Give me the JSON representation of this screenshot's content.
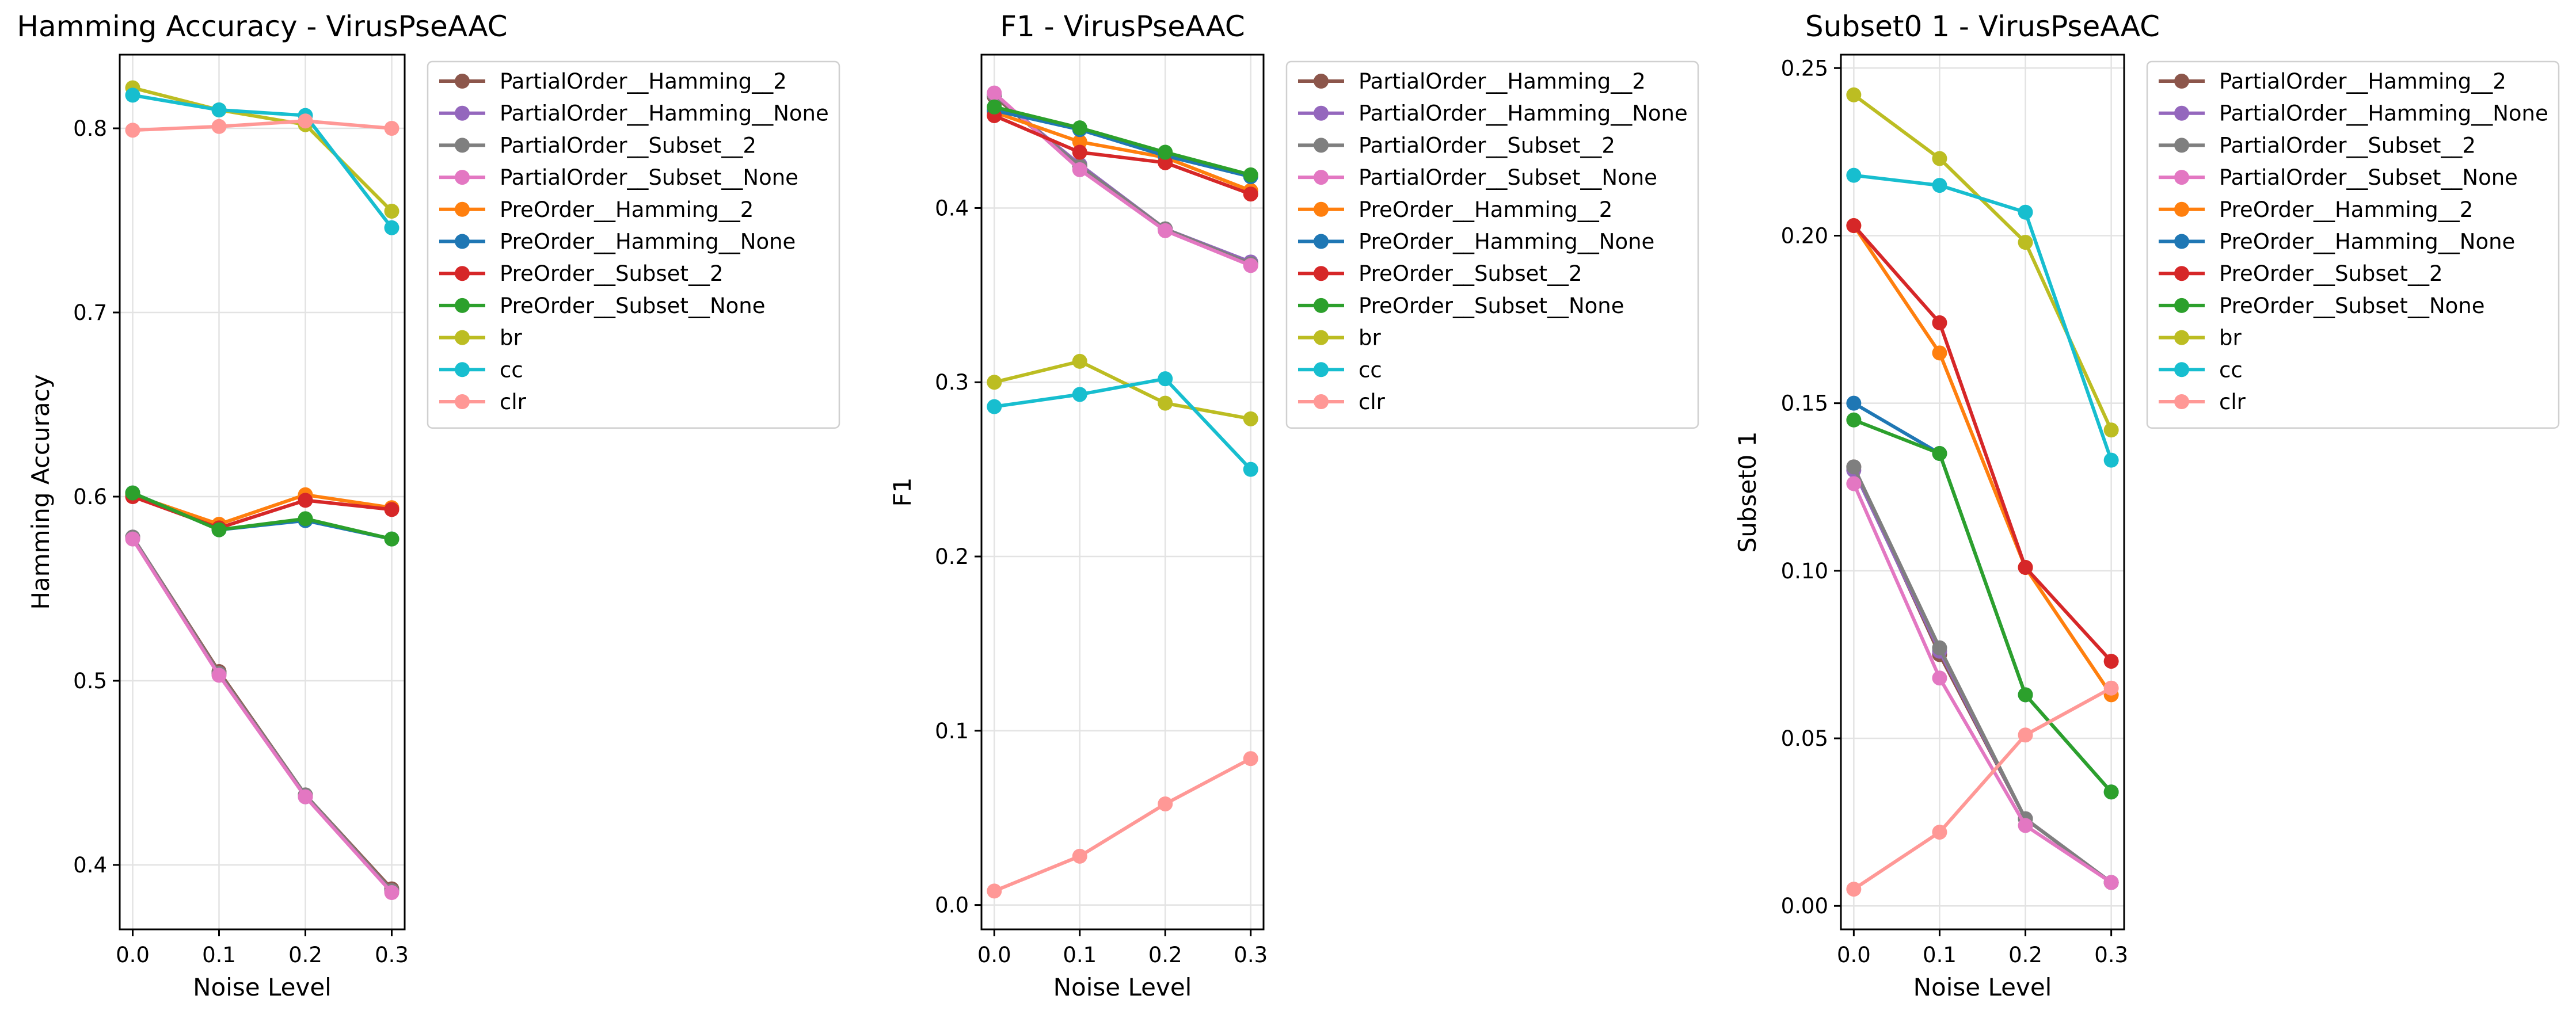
{
  "figure": {
    "x_label": "Noise Level",
    "x_ticks": [
      "0.0",
      "0.1",
      "0.2",
      "0.3"
    ]
  },
  "series_styles": [
    {
      "name": "PartialOrder__Hamming__2",
      "color": "#8c564b"
    },
    {
      "name": "PartialOrder__Hamming__None",
      "color": "#9467bd"
    },
    {
      "name": "PartialOrder__Subset__2",
      "color": "#7f7f7f"
    },
    {
      "name": "PartialOrder__Subset__None",
      "color": "#e377c2"
    },
    {
      "name": "PreOrder__Hamming__2",
      "color": "#ff7f0e"
    },
    {
      "name": "PreOrder__Hamming__None",
      "color": "#1f77b4"
    },
    {
      "name": "PreOrder__Subset__2",
      "color": "#d62728"
    },
    {
      "name": "PreOrder__Subset__None",
      "color": "#2ca02c"
    },
    {
      "name": "br",
      "color": "#bcbd22"
    },
    {
      "name": "cc",
      "color": "#17becf"
    },
    {
      "name": "clr",
      "color": "#ff9896"
    }
  ],
  "chart_data": [
    {
      "type": "line",
      "title": "Hamming Accuracy - VirusPseAAC",
      "xlabel": "Noise Level",
      "ylabel": "Hamming Accuracy",
      "x": [
        0.0,
        0.1,
        0.2,
        0.3
      ],
      "xlim": [
        -0.015,
        0.315
      ],
      "ylim": [
        0.365,
        0.84
      ],
      "yticks": [
        0.4,
        0.5,
        0.6,
        0.7,
        0.8
      ],
      "ytick_labels": [
        "0.4",
        "0.5",
        "0.6",
        "0.7",
        "0.8"
      ],
      "grid": true,
      "legend": "outside-right",
      "series": [
        {
          "name": "PartialOrder__Hamming__2",
          "values": [
            0.578,
            0.505,
            0.438,
            0.387
          ]
        },
        {
          "name": "PartialOrder__Hamming__None",
          "values": [
            0.578,
            0.504,
            0.437,
            0.386
          ]
        },
        {
          "name": "PartialOrder__Subset__2",
          "values": [
            0.578,
            0.504,
            0.438,
            0.386
          ]
        },
        {
          "name": "PartialOrder__Subset__None",
          "values": [
            0.577,
            0.503,
            0.437,
            0.385
          ]
        },
        {
          "name": "PreOrder__Hamming__2",
          "values": [
            0.601,
            0.585,
            0.601,
            0.594
          ]
        },
        {
          "name": "PreOrder__Hamming__None",
          "values": [
            0.602,
            0.582,
            0.587,
            0.577
          ]
        },
        {
          "name": "PreOrder__Subset__2",
          "values": [
            0.6,
            0.583,
            0.598,
            0.593
          ]
        },
        {
          "name": "PreOrder__Subset__None",
          "values": [
            0.602,
            0.582,
            0.588,
            0.577
          ]
        },
        {
          "name": "br",
          "values": [
            0.822,
            0.81,
            0.802,
            0.755
          ]
        },
        {
          "name": "cc",
          "values": [
            0.818,
            0.81,
            0.807,
            0.746
          ]
        },
        {
          "name": "clr",
          "values": [
            0.799,
            0.801,
            0.804,
            0.8
          ]
        }
      ]
    },
    {
      "type": "line",
      "title": "F1 - VirusPseAAC",
      "xlabel": "Noise Level",
      "ylabel": "F1",
      "x": [
        0.0,
        0.1,
        0.2,
        0.3
      ],
      "xlim": [
        -0.015,
        0.315
      ],
      "ylim": [
        -0.014,
        0.488
      ],
      "yticks": [
        0.0,
        0.1,
        0.2,
        0.3,
        0.4
      ],
      "ytick_labels": [
        "0.0",
        "0.1",
        "0.2",
        "0.3",
        "0.4"
      ],
      "grid": true,
      "legend": "outside-right",
      "series": [
        {
          "name": "PartialOrder__Hamming__2",
          "values": [
            0.464,
            0.424,
            0.388,
            0.368
          ]
        },
        {
          "name": "PartialOrder__Hamming__None",
          "values": [
            0.465,
            0.425,
            0.388,
            0.369
          ]
        },
        {
          "name": "PartialOrder__Subset__2",
          "values": [
            0.465,
            0.424,
            0.388,
            0.368
          ]
        },
        {
          "name": "PartialOrder__Subset__None",
          "values": [
            0.466,
            0.422,
            0.387,
            0.367
          ]
        },
        {
          "name": "PreOrder__Hamming__2",
          "values": [
            0.455,
            0.438,
            0.429,
            0.41
          ]
        },
        {
          "name": "PreOrder__Hamming__None",
          "values": [
            0.456,
            0.445,
            0.43,
            0.418
          ]
        },
        {
          "name": "PreOrder__Subset__2",
          "values": [
            0.453,
            0.432,
            0.426,
            0.408
          ]
        },
        {
          "name": "PreOrder__Subset__None",
          "values": [
            0.458,
            0.446,
            0.432,
            0.419
          ]
        },
        {
          "name": "br",
          "values": [
            0.3,
            0.312,
            0.288,
            0.279
          ]
        },
        {
          "name": "cc",
          "values": [
            0.286,
            0.293,
            0.302,
            0.25
          ]
        },
        {
          "name": "clr",
          "values": [
            0.008,
            0.028,
            0.058,
            0.084
          ]
        }
      ]
    },
    {
      "type": "line",
      "title": "Subset0 1 - VirusPseAAC",
      "xlabel": "Noise Level",
      "ylabel": "Subset0 1",
      "x": [
        0.0,
        0.1,
        0.2,
        0.3
      ],
      "xlim": [
        -0.015,
        0.315
      ],
      "ylim": [
        -0.007,
        0.254
      ],
      "yticks": [
        0.0,
        0.05,
        0.1,
        0.15,
        0.2,
        0.25
      ],
      "ytick_labels": [
        "0.00",
        "0.05",
        "0.10",
        "0.15",
        "0.20",
        "0.25"
      ],
      "grid": true,
      "legend": "outside-right",
      "series": [
        {
          "name": "PartialOrder__Hamming__2",
          "values": [
            0.131,
            0.075,
            0.026,
            0.007
          ]
        },
        {
          "name": "PartialOrder__Hamming__None",
          "values": [
            0.13,
            0.076,
            0.026,
            0.007
          ]
        },
        {
          "name": "PartialOrder__Subset__2",
          "values": [
            0.131,
            0.077,
            0.026,
            0.007
          ]
        },
        {
          "name": "PartialOrder__Subset__None",
          "values": [
            0.126,
            0.068,
            0.024,
            0.007
          ]
        },
        {
          "name": "PreOrder__Hamming__2",
          "values": [
            0.203,
            0.165,
            0.101,
            0.063
          ]
        },
        {
          "name": "PreOrder__Hamming__None",
          "values": [
            0.15,
            0.135,
            0.063,
            0.034
          ]
        },
        {
          "name": "PreOrder__Subset__2",
          "values": [
            0.203,
            0.174,
            0.101,
            0.073
          ]
        },
        {
          "name": "PreOrder__Subset__None",
          "values": [
            0.145,
            0.135,
            0.063,
            0.034
          ]
        },
        {
          "name": "br",
          "values": [
            0.242,
            0.223,
            0.198,
            0.142
          ]
        },
        {
          "name": "cc",
          "values": [
            0.218,
            0.215,
            0.207,
            0.133
          ]
        },
        {
          "name": "clr",
          "values": [
            0.005,
            0.022,
            0.051,
            0.065
          ]
        }
      ]
    }
  ]
}
